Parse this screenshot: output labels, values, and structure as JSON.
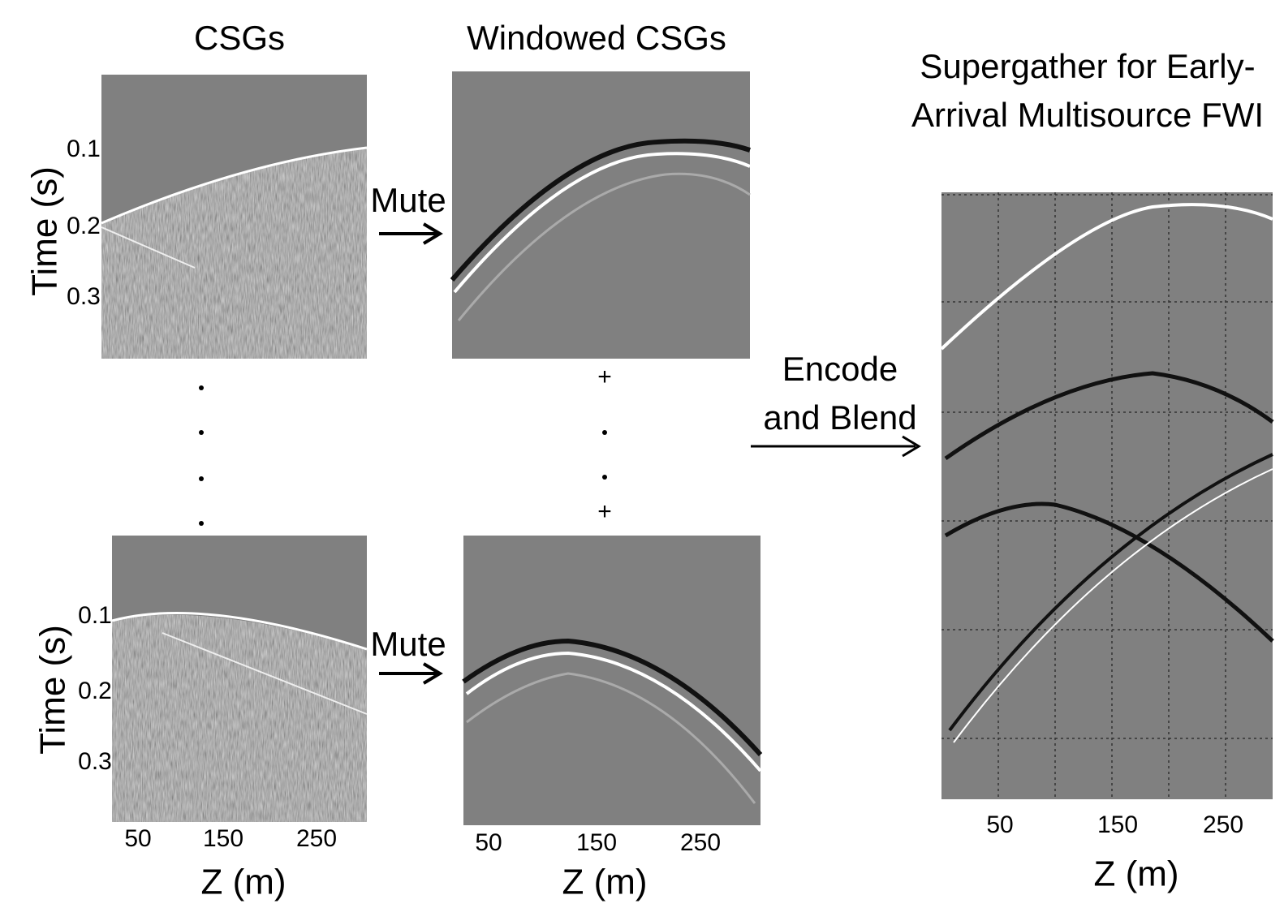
{
  "csg_top": {
    "title": "CSGs",
    "y_label": "Time (s)",
    "y_ticks": [
      "0.1",
      "0.2",
      "0.3"
    ]
  },
  "csg_bottom": {
    "y_label": "Time (s)",
    "y_ticks": [
      "0.1",
      "0.2",
      "0.3"
    ],
    "x_ticks": [
      "50",
      "150",
      "250"
    ],
    "x_label": "Z (m)"
  },
  "windowed_top": {
    "title": "Windowed CSGs"
  },
  "windowed_bottom": {
    "x_ticks": [
      "50",
      "150",
      "250"
    ],
    "x_label": "Z (m)"
  },
  "supergather": {
    "title": [
      "Supergather for Early-",
      "Arrival Multisource FWI"
    ],
    "x_ticks": [
      "50",
      "150",
      "250"
    ],
    "x_label": "Z (m)"
  },
  "mute": [
    "Mute",
    "Mute"
  ],
  "encode": [
    "Encode",
    "and Blend"
  ],
  "plus": [
    "+",
    "+"
  ]
}
